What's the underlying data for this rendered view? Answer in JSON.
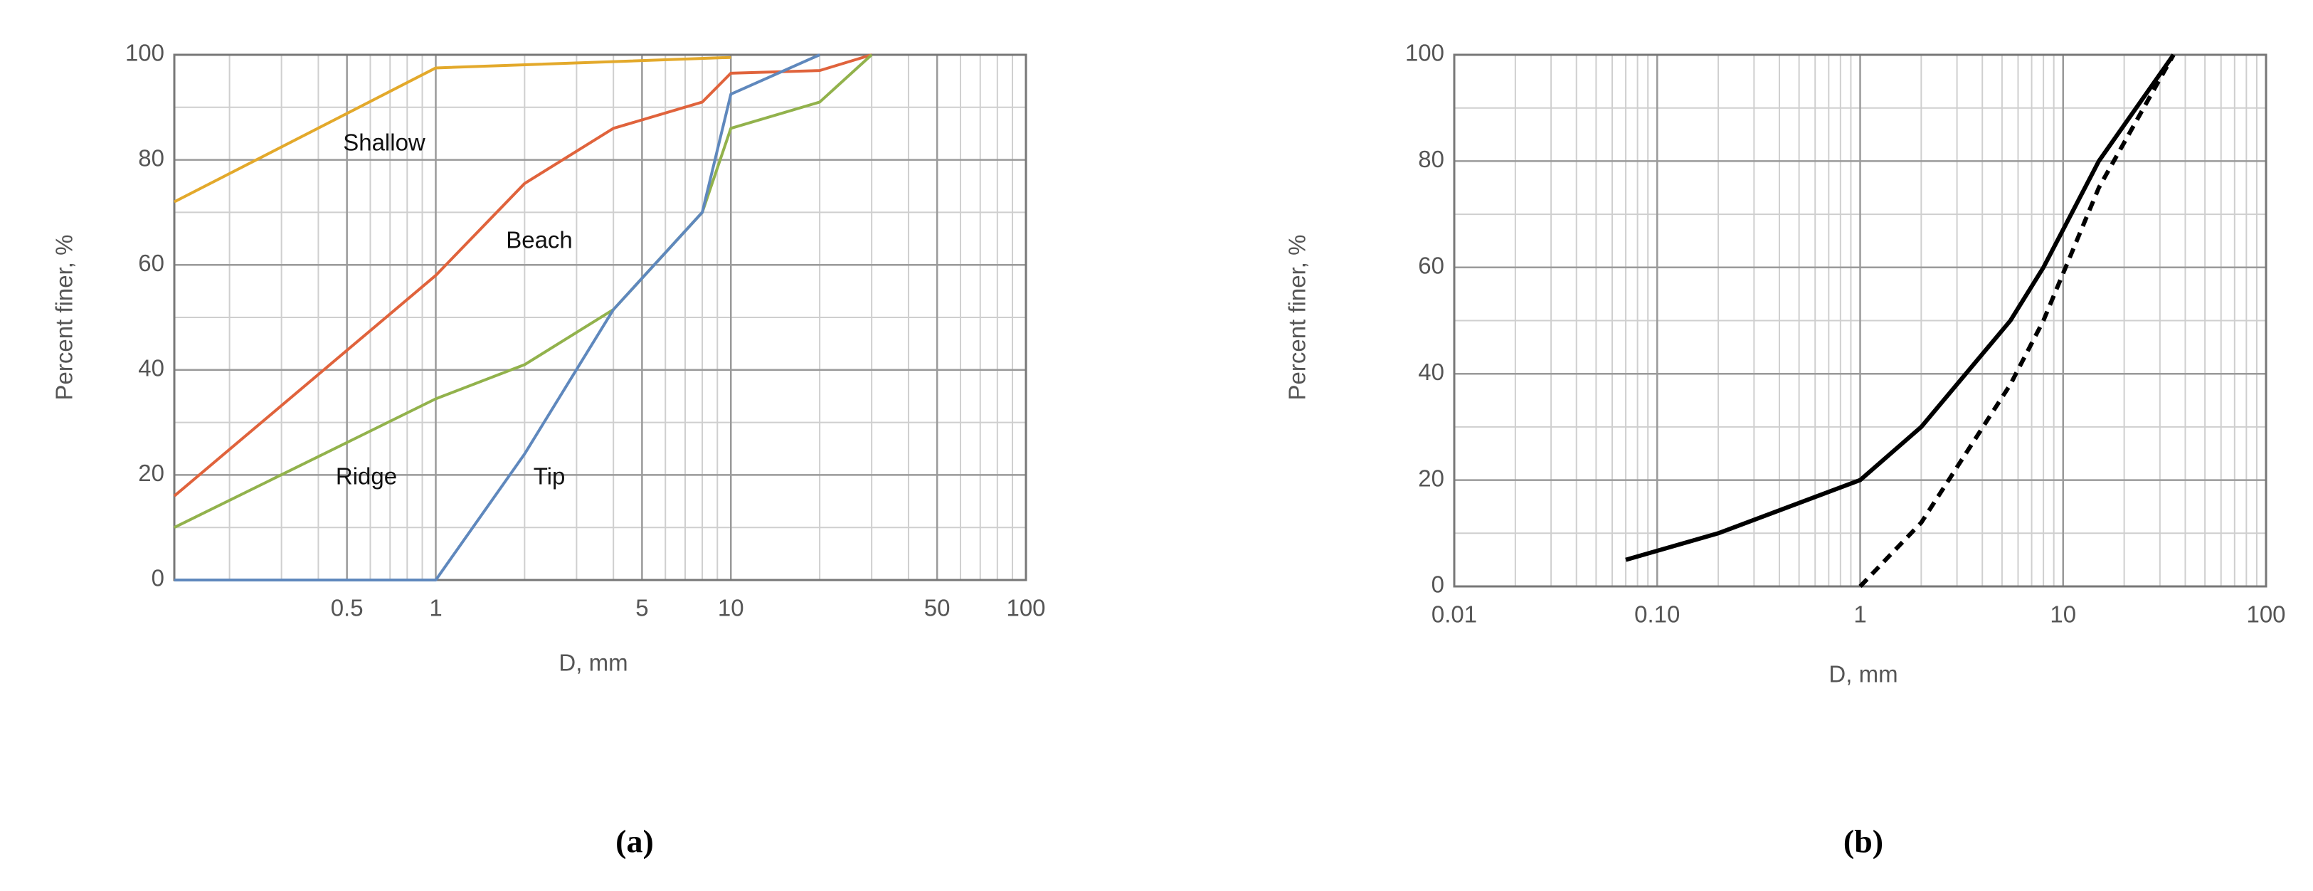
{
  "chart_data": [
    {
      "type": "line",
      "panel": "(a)",
      "xlabel": "D, mm",
      "ylabel": "Percent finer, %",
      "xscale": "log",
      "xlim": [
        0.13,
        100
      ],
      "xticks": [
        0.5,
        1,
        5,
        10,
        50,
        100
      ],
      "ylim": [
        0,
        100
      ],
      "yticks": [
        0,
        20,
        40,
        60,
        80,
        100
      ],
      "grid": true,
      "minor_grid": true,
      "annotations": [
        "Shallow",
        "Beach",
        "Ridge",
        "Tip"
      ],
      "series": [
        {
          "name": "Shallow",
          "color": "#e3a92b",
          "x": [
            0.13,
            1,
            10
          ],
          "values": [
            72,
            97.5,
            99.5
          ]
        },
        {
          "name": "Beach",
          "color": "#e0633c",
          "x": [
            0.13,
            1,
            2,
            4,
            8,
            10,
            20,
            30
          ],
          "values": [
            16,
            58,
            75.5,
            86,
            91,
            96.5,
            97,
            100
          ]
        },
        {
          "name": "Ridge",
          "color": "#92b24c",
          "x": [
            0.13,
            1,
            2,
            4,
            8,
            10,
            20,
            30
          ],
          "values": [
            10,
            34.5,
            41,
            51.5,
            70,
            86,
            91,
            100
          ]
        },
        {
          "name": "Tip",
          "color": "#5f88bd",
          "x": [
            0.13,
            1,
            2,
            4,
            8,
            10,
            20
          ],
          "values": [
            0,
            0,
            24,
            51.5,
            70,
            92.5,
            100
          ]
        }
      ]
    },
    {
      "type": "line",
      "panel": "(b)",
      "xlabel": "D, mm",
      "ylabel": "Percent finer, %",
      "xscale": "log",
      "xlim": [
        0.01,
        100
      ],
      "xticks": [
        0.01,
        {
          "value": 0.1,
          "label": "0.10"
        },
        1,
        10,
        100
      ],
      "ylim": [
        0,
        100
      ],
      "yticks": [
        0,
        20,
        40,
        60,
        80,
        100
      ],
      "grid": true,
      "minor_grid": true,
      "series": [
        {
          "color": "#000000",
          "style": "solid",
          "x": [
            0.07,
            0.2,
            1,
            2,
            5.5,
            8,
            15,
            35
          ],
          "values": [
            5,
            10,
            20,
            30,
            50,
            60,
            80,
            100
          ]
        },
        {
          "color": "#000000",
          "style": "dashed",
          "x": [
            1,
            2,
            5.5,
            8,
            15,
            35
          ],
          "values": [
            0,
            12,
            38,
            50,
            75,
            100
          ]
        }
      ]
    }
  ]
}
